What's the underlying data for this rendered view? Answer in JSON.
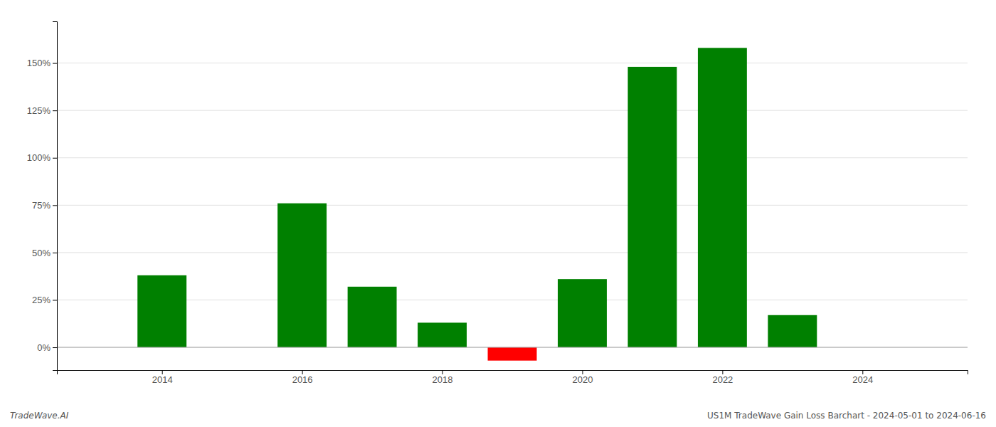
{
  "chart_data": {
    "type": "bar",
    "x": [
      2014,
      2016,
      2017,
      2018,
      2019,
      2020,
      2021,
      2022,
      2023
    ],
    "values": [
      0.38,
      0.76,
      0.32,
      0.13,
      -0.07,
      0.36,
      1.48,
      1.58,
      0.17
    ],
    "colors": [
      "#008000",
      "#008000",
      "#008000",
      "#008000",
      "#ff0000",
      "#008000",
      "#008000",
      "#008000",
      "#008000"
    ],
    "xlim": [
      2012.5,
      2025.5
    ],
    "xticks": [
      2014,
      2016,
      2018,
      2020,
      2022,
      2024
    ],
    "ylim": [
      -0.12,
      1.72
    ],
    "yticks": [
      {
        "value": 0.0,
        "label": "0%"
      },
      {
        "value": 0.25,
        "label": "25%"
      },
      {
        "value": 0.5,
        "label": "50%"
      },
      {
        "value": 0.75,
        "label": "75%"
      },
      {
        "value": 1.0,
        "label": "100%"
      },
      {
        "value": 1.25,
        "label": "125%"
      },
      {
        "value": 1.5,
        "label": "150%"
      }
    ],
    "grid": true,
    "annotations": [
      "TradeWave.AI",
      "US1M TradeWave Gain Loss Barchart - 2024-05-01 to 2024-06-16"
    ]
  }
}
